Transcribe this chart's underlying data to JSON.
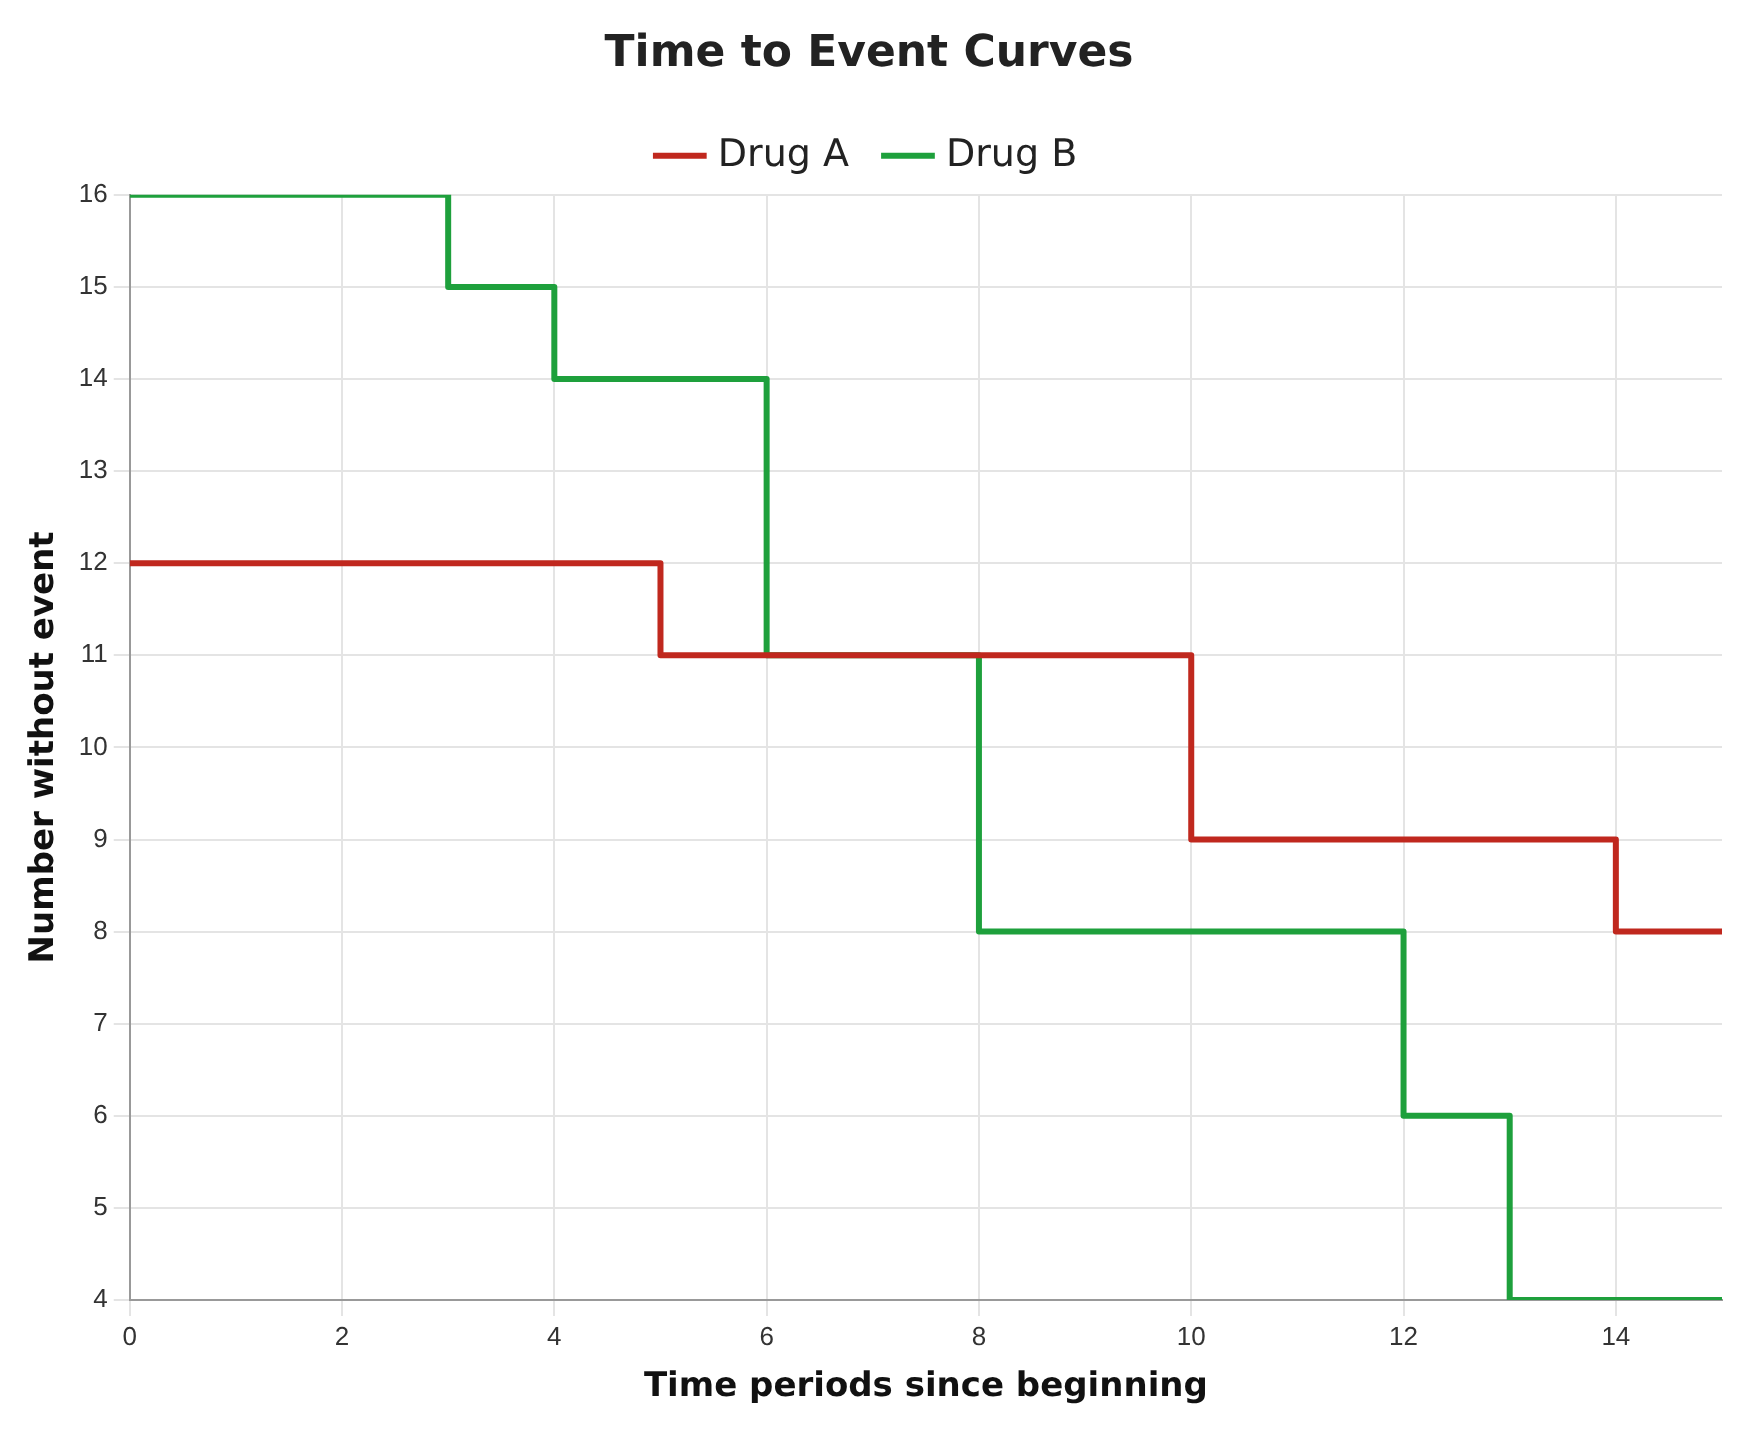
{
  "chart_data": {
    "type": "step",
    "title": "Time to Event Curves",
    "xlabel": "Time periods since beginning",
    "ylabel": "Number without event",
    "series": [
      {
        "name": "Drug A",
        "color": "#c0281e",
        "x": [
          0,
          5,
          10,
          14,
          15
        ],
        "values": [
          12,
          11,
          9,
          8,
          8
        ]
      },
      {
        "name": "Drug B",
        "color": "#1ea03c",
        "x": [
          0,
          3,
          4,
          6,
          8,
          12,
          13,
          15
        ],
        "values": [
          16,
          15,
          14,
          11,
          8,
          6,
          4,
          4
        ]
      }
    ],
    "xlim": [
      0,
      15
    ],
    "xticks": [
      0,
      2,
      4,
      6,
      8,
      10,
      12,
      14
    ],
    "ylim": [
      4,
      16
    ],
    "yticks": [
      4,
      5,
      6,
      7,
      8,
      9,
      10,
      11,
      12,
      13,
      14,
      15,
      16
    ],
    "grid": true,
    "legend": "top",
    "marker": "none"
  }
}
